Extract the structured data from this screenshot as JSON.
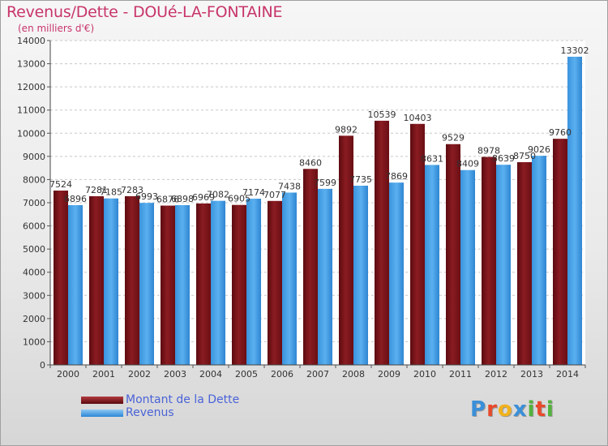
{
  "header": {
    "title": "Revenus/Dette - DOUé-LA-FONTAINE",
    "subtitle": "(en milliers d'€)"
  },
  "legend": {
    "items": [
      {
        "label": "Montant de la Dette",
        "color": "#7a1418"
      },
      {
        "label": "Revenus",
        "color": "#3d9be4"
      }
    ]
  },
  "logo": {
    "text": "Proxiti",
    "letters": [
      {
        "ch": "P",
        "color": "#3a8fd8"
      },
      {
        "ch": "r",
        "color": "#e84a2a"
      },
      {
        "ch": "o",
        "color": "#f2b21d"
      },
      {
        "ch": "x",
        "color": "#3a8fd8"
      },
      {
        "ch": "i",
        "color": "#52b33b"
      },
      {
        "ch": "t",
        "color": "#e84a2a"
      },
      {
        "ch": "i",
        "color": "#52b33b"
      }
    ]
  },
  "chart_data": {
    "type": "bar",
    "title": "Revenus/Dette - DOUé-LA-FONTAINE",
    "subtitle": "(en milliers d'€)",
    "categories": [
      "2000",
      "2001",
      "2002",
      "2003",
      "2004",
      "2005",
      "2006",
      "2007",
      "2008",
      "2009",
      "2010",
      "2011",
      "2012",
      "2013",
      "2014"
    ],
    "series": [
      {
        "name": "Montant de la Dette",
        "color": "#7a1418",
        "values": [
          7524,
          7281,
          7283,
          6876,
          6969,
          6905,
          7077,
          8460,
          9892,
          10539,
          10403,
          9529,
          8978,
          8750,
          9760
        ],
        "labels": [
          "7524",
          "7281",
          "7283",
          "6876",
          "6969",
          "6905",
          "7077",
          "8460",
          "9892",
          "10539",
          "10403",
          "9529",
          "8978",
          "8750",
          "9760"
        ]
      },
      {
        "name": "Revenus",
        "color": "#3d9be4",
        "values": [
          6896,
          7185,
          6993,
          6898,
          7082,
          7174,
          7438,
          7599,
          7735,
          7869,
          8631,
          8409,
          8639,
          9026,
          13302
        ],
        "labels": [
          "6896",
          "7185",
          "6993",
          "6898",
          "7082",
          "7174",
          "7438",
          "7599",
          "7735",
          "7869",
          "8631",
          "8409",
          "8639",
          "9026",
          "13302"
        ]
      }
    ],
    "ylim": [
      0,
      14000
    ],
    "yticks": [
      0,
      1000,
      2000,
      3000,
      4000,
      5000,
      6000,
      7000,
      8000,
      9000,
      10000,
      11000,
      12000,
      13000,
      14000
    ],
    "grid": true,
    "legend_position": "bottom-left"
  }
}
